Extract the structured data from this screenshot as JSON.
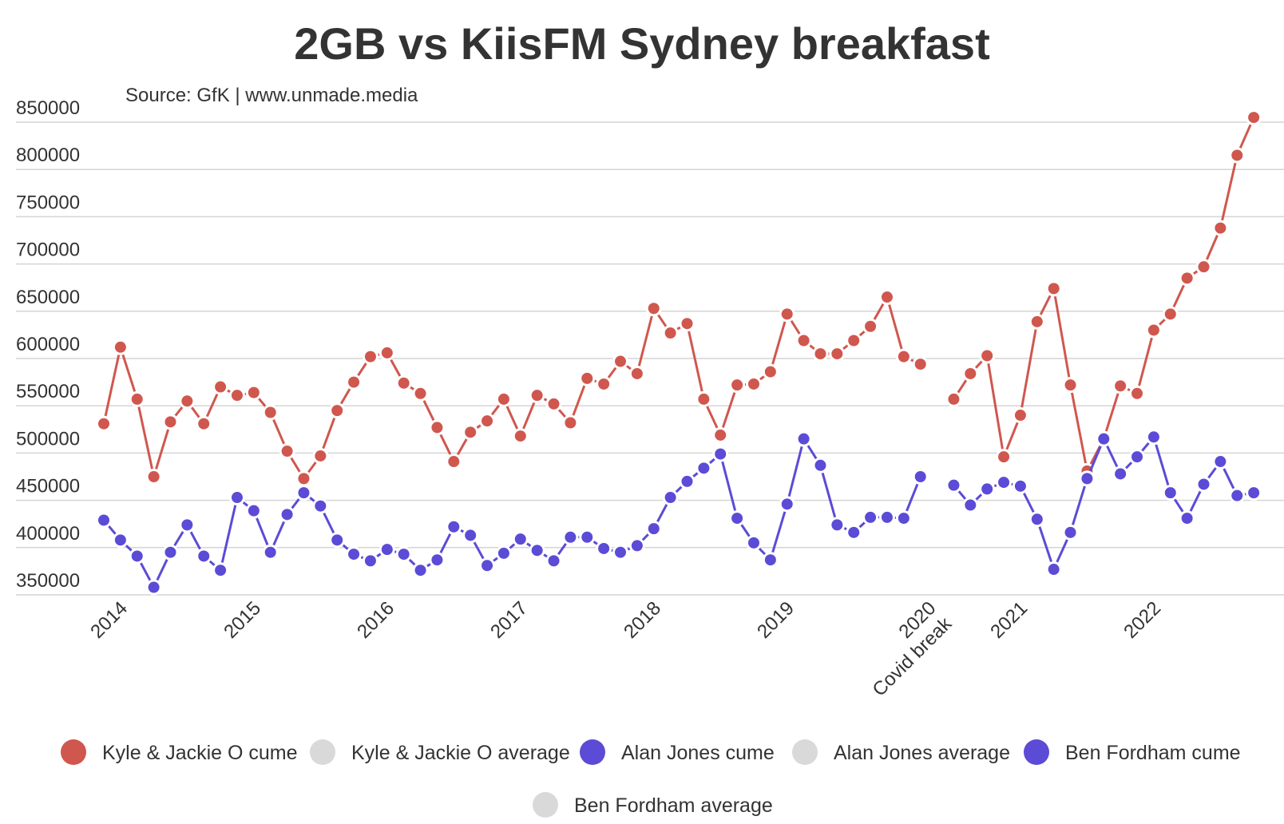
{
  "chart_data": {
    "type": "line",
    "title": "2GB vs KiisFM Sydney breakfast",
    "subtitle": "Source: GfK | www.unmade.media",
    "ylim": [
      350000,
      850000
    ],
    "yticks": [
      850000,
      800000,
      750000,
      700000,
      650000,
      600000,
      550000,
      500000,
      450000,
      400000,
      350000
    ],
    "x_range": [
      0,
      70
    ],
    "x_labels": [
      {
        "x": 1,
        "lines": [
          "2014"
        ]
      },
      {
        "x": 9,
        "lines": [
          "2015"
        ]
      },
      {
        "x": 17,
        "lines": [
          "2016"
        ]
      },
      {
        "x": 25,
        "lines": [
          "2017"
        ]
      },
      {
        "x": 33,
        "lines": [
          "2018"
        ]
      },
      {
        "x": 41,
        "lines": [
          "2019"
        ]
      },
      {
        "x": 49.5,
        "lines": [
          "2020",
          "Covid break"
        ]
      },
      {
        "x": 55,
        "lines": [
          "2021"
        ]
      },
      {
        "x": 63,
        "lines": [
          "2022"
        ]
      }
    ],
    "grid": true,
    "legend_position": "bottom",
    "series": [
      {
        "name": "Kyle & Jackie O cume",
        "color": "#d0574e",
        "x": [
          0,
          1,
          2,
          3,
          4,
          5,
          6,
          7,
          8,
          9,
          10,
          11,
          12,
          13,
          14,
          15,
          16,
          17,
          18,
          19,
          20,
          21,
          22,
          23,
          24,
          25,
          26,
          27,
          28,
          29,
          30,
          31,
          32,
          33,
          34,
          35,
          36,
          37,
          38,
          39,
          40,
          41,
          42,
          43,
          44,
          45,
          46,
          47,
          48,
          49,
          51,
          52,
          53,
          54,
          55,
          56,
          57,
          58,
          59,
          60,
          61,
          62,
          63,
          64,
          65,
          66,
          67,
          68,
          69
        ],
        "values": [
          531000,
          612000,
          557000,
          475000,
          533000,
          555000,
          531000,
          570000,
          561000,
          564000,
          543000,
          502000,
          473000,
          497000,
          545000,
          575000,
          602000,
          606000,
          574000,
          563000,
          527000,
          491000,
          522000,
          534000,
          557000,
          518000,
          561000,
          552000,
          532000,
          579000,
          573000,
          597000,
          584000,
          653000,
          627000,
          637000,
          557000,
          519000,
          572000,
          573000,
          586000,
          647000,
          619000,
          605000,
          605000,
          619000,
          634000,
          665000,
          602000,
          594000,
          557000,
          584000,
          603000,
          496000,
          540000,
          639000,
          674000,
          572000,
          481000,
          515000,
          571000,
          563000,
          630000,
          647000,
          685000,
          697000,
          738000,
          815000,
          855000
        ]
      },
      {
        "name": "Kyle & Jackie O average",
        "color": "#d9d9d9",
        "x": [],
        "values": []
      },
      {
        "name": "Alan Jones cume",
        "color": "#5b4bd6",
        "x": [
          0,
          1,
          2,
          3,
          4,
          5,
          6,
          7,
          8,
          9,
          10,
          11,
          12,
          13,
          14,
          15,
          16,
          17,
          18,
          19,
          20,
          21,
          22,
          23,
          24,
          25,
          26,
          27,
          28,
          29,
          30,
          31,
          32,
          33,
          34,
          35,
          36,
          37,
          38,
          39,
          40,
          41,
          42,
          43,
          44,
          45,
          46,
          47,
          48,
          49
        ],
        "values": [
          429000,
          408000,
          391000,
          358000,
          395000,
          424000,
          391000,
          376000,
          453000,
          439000,
          395000,
          435000,
          458000,
          444000,
          408000,
          393000,
          386000,
          398000,
          393000,
          376000,
          387000,
          422000,
          413000,
          381000,
          394000,
          409000,
          397000,
          386000,
          411000,
          411000,
          399000,
          395000,
          402000,
          420000,
          453000,
          470000,
          484000,
          499000,
          431000,
          405000,
          387000,
          446000,
          515000,
          487000,
          424000,
          416000,
          432000,
          432000,
          431000,
          475000
        ]
      },
      {
        "name": "Alan Jones average",
        "color": "#d9d9d9",
        "x": [],
        "values": []
      },
      {
        "name": "Ben Fordham cume",
        "color": "#5b4bd6",
        "x": [
          51,
          52,
          53,
          54,
          55,
          56,
          57,
          58,
          59,
          60,
          61,
          62,
          63,
          64,
          65,
          66,
          67,
          68,
          69
        ],
        "values": [
          466000,
          445000,
          462000,
          469000,
          465000,
          430000,
          377000,
          416000,
          473000,
          515000,
          478000,
          496000,
          517000,
          458000,
          431000,
          467000,
          491000,
          455000,
          458000
        ]
      },
      {
        "name": "Ben Fordham average",
        "color": "#d9d9d9",
        "x": [],
        "values": []
      }
    ]
  }
}
